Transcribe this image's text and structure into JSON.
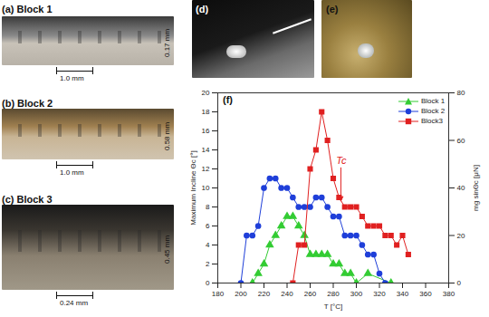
{
  "panels": [
    {
      "label": "(a) Block 1",
      "height_text": "0.17 mm",
      "pitch_text": "1.0 mm"
    },
    {
      "label": "(b) Block 2",
      "height_text": "0.58 mm",
      "pitch_text": "1.0 mm"
    },
    {
      "label": "(c) Block 3",
      "height_text": "0.45 mm",
      "pitch_text": "0.24 mm"
    },
    {
      "label": "(d)"
    },
    {
      "label": "(e)"
    }
  ],
  "chart_data": {
    "type": "line",
    "title": "(f)",
    "x_label": "T [°C]",
    "y_label": "Maximum Incline Θc [°]",
    "y2_label": "mg sinΘc [μN]",
    "xlim": [
      180,
      380
    ],
    "xticks": [
      180,
      200,
      220,
      240,
      260,
      280,
      300,
      320,
      340,
      360,
      380
    ],
    "ylim": [
      0,
      20
    ],
    "yticks": [
      0,
      2,
      4,
      6,
      8,
      10,
      12,
      14,
      16,
      18,
      20
    ],
    "y2lim": [
      0,
      80
    ],
    "y2ticks": [
      0,
      20,
      40,
      60,
      80
    ],
    "legend": "top-right",
    "series": [
      {
        "name": "Block 1",
        "color": "#33cc33",
        "marker": "triangle",
        "x": [
          210,
          215,
          220,
          225,
          230,
          235,
          240,
          245,
          250,
          255,
          260,
          265,
          270,
          275,
          280,
          285,
          290,
          295,
          300,
          310,
          330
        ],
        "values": [
          0,
          1,
          2,
          4,
          5,
          6,
          7,
          7,
          6,
          5,
          3,
          3,
          3,
          3,
          2,
          2,
          1,
          1,
          0,
          1,
          0
        ]
      },
      {
        "name": "Block 2",
        "color": "#1f3fd9",
        "marker": "circle",
        "x": [
          200,
          205,
          210,
          215,
          220,
          225,
          230,
          235,
          240,
          245,
          250,
          255,
          260,
          265,
          270,
          275,
          280,
          285,
          290,
          295,
          300,
          305,
          310,
          315,
          320,
          325
        ],
        "values": [
          0,
          5,
          5,
          6,
          10,
          11,
          11,
          10,
          10,
          9,
          8,
          8,
          8,
          9,
          9,
          8,
          7,
          7,
          5,
          5,
          5,
          4,
          3,
          3,
          1,
          0
        ]
      },
      {
        "name": "Block3",
        "color": "#e02020",
        "marker": "square",
        "x": [
          245,
          250,
          255,
          260,
          265,
          270,
          275,
          280,
          285,
          290,
          295,
          300,
          305,
          310,
          315,
          320,
          325,
          330,
          335,
          340,
          345
        ],
        "values": [
          0,
          4,
          4,
          12,
          14,
          18,
          15,
          11,
          9,
          8,
          8,
          8,
          7,
          6,
          6,
          6,
          5,
          5,
          4,
          5,
          3
        ]
      }
    ],
    "annotations": [
      {
        "text": "Tc",
        "x": 287,
        "y": 8.3,
        "color": "#e02020"
      }
    ]
  }
}
